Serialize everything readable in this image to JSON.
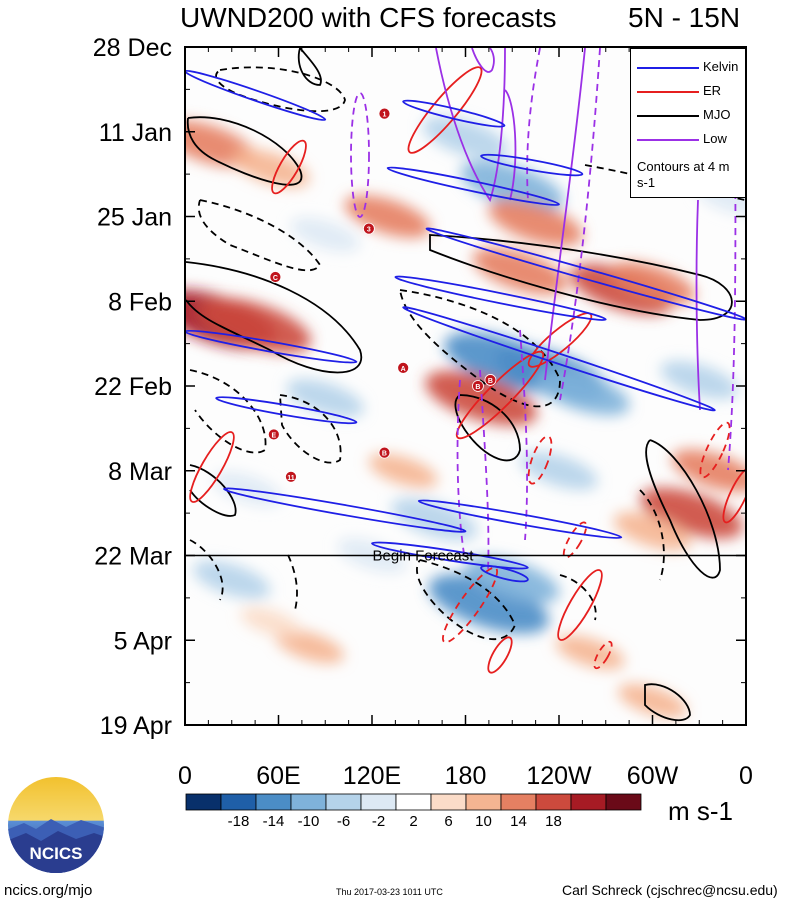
{
  "chart_data": {
    "type": "heatmap",
    "title": "UWND200 with CFS forecasts",
    "region": "5N - 15N",
    "y_ticks": [
      "28 Dec",
      "11 Jan",
      "25 Jan",
      "8 Feb",
      "22 Feb",
      "8 Mar",
      "22 Mar",
      "5 Apr",
      "19 Apr"
    ],
    "x_ticks": [
      "0",
      "60E",
      "120E",
      "180",
      "120W",
      "60W",
      "0"
    ],
    "x_range_deg_east": [
      0,
      360
    ],
    "y_range_days_from_28Dec": [
      0,
      112
    ],
    "forecast_start": {
      "label": "Begin Forecast",
      "day": 84
    },
    "colorbar": {
      "units": "m s-1",
      "tick_labels": [
        "-18",
        "-14",
        "-10",
        "-6",
        "-2",
        "2",
        "6",
        "10",
        "14",
        "18"
      ],
      "colors": [
        "#08306b",
        "#1f5fa8",
        "#4b8dc6",
        "#7fb2da",
        "#b5d3ea",
        "#dde9f4",
        "#ffffff",
        "#fbdcc8",
        "#f5b592",
        "#e58062",
        "#cc4a3d",
        "#a61b24",
        "#6a0a18"
      ]
    },
    "legend": [
      {
        "label": "Kelvin",
        "color": "#1f1fe6"
      },
      {
        "label": "ER",
        "color": "#e61f1f"
      },
      {
        "label": "MJO",
        "color": "#000000"
      },
      {
        "label": "Low",
        "color": "#9b30e6"
      }
    ],
    "contour_note": "Contours at 4 m s-1",
    "anomalies": [
      {
        "lon": 20,
        "day": 45,
        "value": 18
      },
      {
        "lon": 45,
        "day": 46,
        "value": 16
      },
      {
        "lon": 15,
        "day": 16,
        "value": 12
      },
      {
        "lon": 55,
        "day": 20,
        "value": 8
      },
      {
        "lon": 205,
        "day": 52,
        "value": -18
      },
      {
        "lon": 235,
        "day": 54,
        "value": -16
      },
      {
        "lon": 255,
        "day": 57,
        "value": -12
      },
      {
        "lon": 190,
        "day": 58,
        "value": 16
      },
      {
        "lon": 215,
        "day": 37,
        "value": 12
      },
      {
        "lon": 280,
        "day": 40,
        "value": 14
      },
      {
        "lon": 300,
        "day": 39,
        "value": 10
      },
      {
        "lon": 210,
        "day": 23,
        "value": -14
      },
      {
        "lon": 225,
        "day": 29,
        "value": 12
      },
      {
        "lon": 180,
        "day": 15,
        "value": -10
      },
      {
        "lon": 90,
        "day": 31,
        "value": -6
      },
      {
        "lon": 130,
        "day": 28,
        "value": 10
      },
      {
        "lon": 325,
        "day": 77,
        "value": 14
      },
      {
        "lon": 340,
        "day": 70,
        "value": 10
      },
      {
        "lon": 195,
        "day": 92,
        "value": -18
      },
      {
        "lon": 210,
        "day": 88,
        "value": -12
      },
      {
        "lon": 160,
        "day": 78,
        "value": -10
      },
      {
        "lon": 90,
        "day": 58,
        "value": -8
      },
      {
        "lon": 40,
        "day": 73,
        "value": -6
      },
      {
        "lon": 80,
        "day": 99,
        "value": 6
      },
      {
        "lon": 260,
        "day": 100,
        "value": 6
      },
      {
        "lon": 300,
        "day": 80,
        "value": 8
      },
      {
        "lon": 330,
        "day": 55,
        "value": -8
      },
      {
        "lon": 350,
        "day": 25,
        "value": -6
      },
      {
        "lon": 120,
        "day": 84,
        "value": -6
      },
      {
        "lon": 30,
        "day": 88,
        "value": -8
      },
      {
        "lon": 140,
        "day": 70,
        "value": 6
      },
      {
        "lon": 240,
        "day": 70,
        "value": -8
      },
      {
        "lon": 300,
        "day": 108,
        "value": 6
      },
      {
        "lon": 55,
        "day": 95,
        "value": 4
      }
    ],
    "kelvin_tracks": [
      {
        "lon_start": 0,
        "day_start": 4,
        "lon_end": 90,
        "day_end": 12
      },
      {
        "lon_start": 140,
        "day_start": 9,
        "lon_end": 205,
        "day_end": 13
      },
      {
        "lon_start": 130,
        "day_start": 20,
        "lon_end": 240,
        "day_end": 26
      },
      {
        "lon_start": 190,
        "day_start": 18,
        "lon_end": 255,
        "day_end": 21
      },
      {
        "lon_start": 155,
        "day_start": 30,
        "lon_end": 360,
        "day_end": 45
      },
      {
        "lon_start": 135,
        "day_start": 38,
        "lon_end": 270,
        "day_end": 45
      },
      {
        "lon_start": 140,
        "day_start": 43,
        "lon_end": 340,
        "day_end": 60
      },
      {
        "lon_start": 0,
        "day_start": 47,
        "lon_end": 110,
        "day_end": 52
      },
      {
        "lon_start": 20,
        "day_start": 58,
        "lon_end": 110,
        "day_end": 62
      },
      {
        "lon_start": 25,
        "day_start": 73,
        "lon_end": 180,
        "day_end": 80
      },
      {
        "lon_start": 150,
        "day_start": 75,
        "lon_end": 280,
        "day_end": 81
      },
      {
        "lon_start": 120,
        "day_start": 82,
        "lon_end": 220,
        "day_end": 86
      },
      {
        "lon_start": 190,
        "day_start": 86,
        "lon_end": 220,
        "day_end": 88
      }
    ],
    "tc_markers": [
      {
        "lon": 128,
        "day": 11,
        "label": "1"
      },
      {
        "lon": 118,
        "day": 30,
        "label": "3"
      },
      {
        "lon": 58,
        "day": 38,
        "label": "C"
      },
      {
        "lon": 140,
        "day": 53,
        "label": "A"
      },
      {
        "lon": 188,
        "day": 56,
        "label": "B"
      },
      {
        "lon": 196,
        "day": 55,
        "label": "B"
      },
      {
        "lon": 57,
        "day": 64,
        "label": "E"
      },
      {
        "lon": 128,
        "day": 67,
        "label": "B"
      },
      {
        "lon": 68,
        "day": 71,
        "label": "11"
      }
    ]
  },
  "footer": {
    "left": "ncics.org/mjo",
    "middle": "Thu 2017-03-23 1011 UTC",
    "right": "Carl Schreck (cjschrec@ncsu.edu)",
    "logo_text": "NCICS"
  }
}
